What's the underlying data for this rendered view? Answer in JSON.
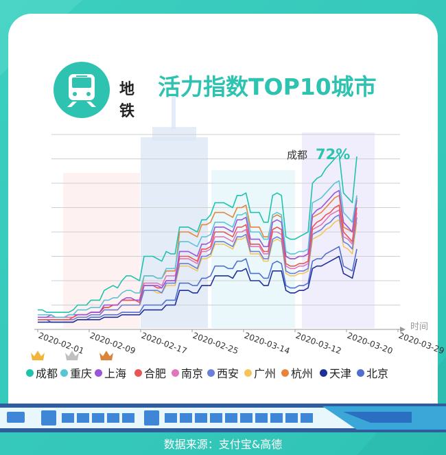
{
  "title": {
    "prefix": "地铁",
    "main": "活力指数TOP10城市"
  },
  "source": "数据来源：支付宝&高德",
  "colors": {
    "accent": "#2ec3b0",
    "background": "#3ccfc0"
  },
  "icons": {
    "badge": "metro-train-icon",
    "crown": "crown-icon"
  },
  "chart_data": {
    "type": "line",
    "xlabel": "时间",
    "ylabel": "",
    "x_ticks": [
      "2020-02-01",
      "2020-02-09",
      "2020-02-17",
      "2020-02-25",
      "2020-03-14",
      "2020-03-12",
      "2020-03-20",
      "2020-03-29"
    ],
    "ylim": [
      0,
      80
    ],
    "grid": true,
    "annotation": {
      "label": "成都",
      "value": "72%"
    },
    "legend_position": "bottom",
    "series": [
      {
        "name": "成都",
        "color": "#1ec2ad",
        "values": [
          8,
          8,
          7,
          7,
          7,
          7,
          7,
          7,
          8,
          10,
          10,
          10,
          12,
          12,
          12,
          16,
          17,
          18,
          17,
          20,
          22,
          22,
          21,
          20,
          30,
          30,
          30,
          29,
          28,
          32,
          31,
          31,
          42,
          42,
          42,
          41,
          40,
          45,
          45,
          47,
          52,
          52,
          52,
          51,
          50,
          55,
          55,
          56,
          48,
          48,
          48,
          44,
          44,
          55,
          56,
          55,
          38,
          37,
          37,
          38,
          39,
          40,
          60,
          62,
          63,
          66,
          68,
          70,
          72,
          56,
          54,
          52,
          71
        ]
      },
      {
        "name": "重庆",
        "color": "#5bc3d6",
        "values": [
          6,
          6,
          6,
          6,
          5,
          5,
          5,
          6,
          6,
          8,
          8,
          8,
          9,
          9,
          9,
          12,
          12,
          13,
          13,
          15,
          16,
          16,
          15,
          15,
          22,
          22,
          22,
          21,
          21,
          25,
          25,
          25,
          36,
          36,
          36,
          35,
          34,
          38,
          38,
          39,
          44,
          44,
          44,
          43,
          42,
          47,
          47,
          48,
          40,
          40,
          40,
          37,
          37,
          47,
          48,
          47,
          32,
          31,
          31,
          32,
          32,
          33,
          52,
          53,
          54,
          56,
          58,
          60,
          61,
          48,
          46,
          44,
          55
        ]
      },
      {
        "name": "上海",
        "color": "#9a55d8",
        "values": [
          5,
          5,
          5,
          6,
          5,
          5,
          5,
          6,
          6,
          6,
          6,
          6,
          7,
          7,
          7,
          10,
          10,
          10,
          10,
          12,
          13,
          13,
          12,
          12,
          18,
          18,
          18,
          18,
          17,
          20,
          20,
          20,
          32,
          32,
          32,
          31,
          30,
          35,
          35,
          36,
          42,
          42,
          42,
          41,
          40,
          45,
          45,
          46,
          37,
          37,
          37,
          34,
          34,
          44,
          45,
          44,
          30,
          29,
          29,
          30,
          30,
          31,
          47,
          49,
          50,
          52,
          54,
          56,
          57,
          44,
          42,
          40,
          54
        ]
      },
      {
        "name": "合肥",
        "color": "#e85555",
        "values": [
          4,
          4,
          4,
          4,
          4,
          4,
          4,
          4,
          5,
          6,
          6,
          6,
          7,
          7,
          7,
          9,
          9,
          10,
          10,
          12,
          12,
          12,
          12,
          11,
          18,
          18,
          18,
          17,
          17,
          20,
          20,
          20,
          30,
          30,
          30,
          29,
          28,
          33,
          33,
          34,
          40,
          40,
          40,
          39,
          38,
          42,
          42,
          43,
          35,
          35,
          35,
          32,
          32,
          41,
          42,
          41,
          27,
          26,
          26,
          27,
          27,
          28,
          42,
          44,
          45,
          47,
          48,
          50,
          51,
          40,
          38,
          36,
          50
        ]
      },
      {
        "name": "南京",
        "color": "#e075b8",
        "values": [
          5,
          5,
          5,
          5,
          5,
          5,
          5,
          5,
          5,
          6,
          6,
          6,
          7,
          7,
          7,
          10,
          10,
          10,
          10,
          12,
          12,
          12,
          12,
          12,
          19,
          19,
          19,
          19,
          18,
          22,
          22,
          22,
          29,
          29,
          29,
          28,
          27,
          32,
          32,
          33,
          38,
          38,
          38,
          37,
          36,
          40,
          40,
          41,
          34,
          34,
          34,
          31,
          31,
          40,
          40,
          39,
          26,
          25,
          25,
          26,
          26,
          27,
          41,
          42,
          43,
          45,
          47,
          48,
          49,
          38,
          37,
          35,
          48
        ]
      },
      {
        "name": "西安",
        "color": "#6a7fd8",
        "values": [
          4,
          4,
          4,
          4,
          4,
          4,
          4,
          4,
          4,
          5,
          5,
          5,
          6,
          6,
          6,
          8,
          8,
          8,
          8,
          10,
          10,
          10,
          10,
          10,
          16,
          16,
          16,
          16,
          15,
          19,
          19,
          19,
          27,
          27,
          27,
          26,
          25,
          30,
          30,
          31,
          36,
          36,
          36,
          35,
          34,
          38,
          38,
          39,
          32,
          32,
          32,
          29,
          29,
          37,
          38,
          37,
          24,
          23,
          23,
          24,
          24,
          25,
          39,
          40,
          41,
          43,
          44,
          46,
          47,
          36,
          35,
          33,
          46
        ]
      },
      {
        "name": "广州",
        "color": "#f5c55a",
        "values": [
          4,
          4,
          4,
          4,
          4,
          4,
          4,
          4,
          4,
          5,
          5,
          5,
          6,
          6,
          6,
          8,
          8,
          8,
          8,
          10,
          10,
          10,
          10,
          10,
          16,
          16,
          16,
          15,
          15,
          18,
          18,
          18,
          26,
          26,
          26,
          25,
          24,
          29,
          29,
          30,
          35,
          35,
          35,
          34,
          33,
          37,
          37,
          38,
          31,
          31,
          31,
          28,
          28,
          36,
          37,
          36,
          23,
          22,
          22,
          23,
          23,
          24,
          37,
          38,
          39,
          41,
          42,
          44,
          45,
          34,
          33,
          31,
          44
        ]
      },
      {
        "name": "杭州",
        "color": "#e8843a",
        "values": [
          5,
          5,
          5,
          5,
          5,
          5,
          5,
          5,
          5,
          6,
          6,
          6,
          7,
          7,
          7,
          9,
          9,
          10,
          10,
          12,
          12,
          12,
          12,
          12,
          22,
          22,
          22,
          21,
          21,
          24,
          24,
          24,
          40,
          40,
          40,
          39,
          38,
          43,
          43,
          44,
          48,
          48,
          48,
          47,
          46,
          50,
          50,
          51,
          42,
          42,
          42,
          38,
          38,
          46,
          47,
          46,
          30,
          29,
          29,
          30,
          30,
          31,
          46,
          47,
          48,
          50,
          52,
          54,
          55,
          42,
          41,
          40,
          53
        ]
      },
      {
        "name": "天津",
        "color": "#1f2f9a",
        "values": [
          3,
          3,
          3,
          3,
          3,
          3,
          3,
          3,
          3,
          4,
          4,
          4,
          4,
          4,
          4,
          5,
          5,
          5,
          5,
          6,
          6,
          6,
          6,
          6,
          8,
          8,
          8,
          8,
          8,
          10,
          10,
          10,
          16,
          16,
          16,
          15,
          15,
          18,
          18,
          18,
          22,
          22,
          22,
          22,
          21,
          24,
          24,
          25,
          20,
          20,
          20,
          18,
          18,
          24,
          24,
          24,
          16,
          15,
          15,
          16,
          16,
          17,
          25,
          26,
          26,
          27,
          28,
          29,
          30,
          23,
          22,
          21,
          29
        ]
      },
      {
        "name": "北京",
        "color": "#4f6fcf",
        "values": [
          4,
          4,
          4,
          3,
          3,
          3,
          3,
          3,
          3,
          4,
          4,
          4,
          5,
          5,
          5,
          6,
          6,
          6,
          6,
          7,
          7,
          7,
          7,
          7,
          10,
          10,
          10,
          10,
          10,
          12,
          12,
          12,
          19,
          19,
          19,
          18,
          18,
          21,
          21,
          22,
          26,
          26,
          26,
          25,
          25,
          28,
          28,
          29,
          23,
          23,
          23,
          21,
          21,
          27,
          28,
          27,
          18,
          17,
          17,
          18,
          18,
          19,
          28,
          29,
          29,
          31,
          32,
          33,
          34,
          26,
          25,
          24,
          33
        ]
      }
    ]
  }
}
